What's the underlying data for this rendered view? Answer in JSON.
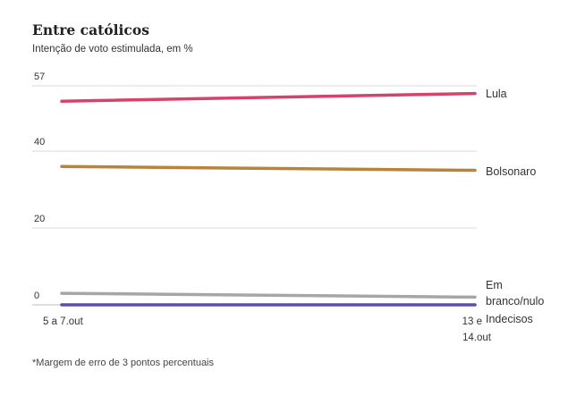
{
  "chart_data": {
    "type": "line",
    "title": "Entre católicos",
    "subtitle": "Intenção de voto estimulada, em %",
    "x": [
      "5 a 7.out",
      "13 e 14.out"
    ],
    "yticks": [
      0,
      20,
      40,
      57
    ],
    "ylim": [
      0,
      57
    ],
    "grid": true,
    "series": [
      {
        "name": "Lula",
        "values": [
          53,
          55
        ],
        "color": "#d6426b"
      },
      {
        "name": "Bolsonaro",
        "values": [
          36,
          35
        ],
        "color": "#b8843b"
      },
      {
        "name": "Em branco/nulo",
        "values": [
          3,
          2
        ],
        "color": "#a6a6a6"
      },
      {
        "name": "Indecisos",
        "values": [
          0,
          0
        ],
        "color": "#5a4fb0"
      }
    ],
    "footnote": "*Margem de erro de 3 pontos percentuais"
  }
}
